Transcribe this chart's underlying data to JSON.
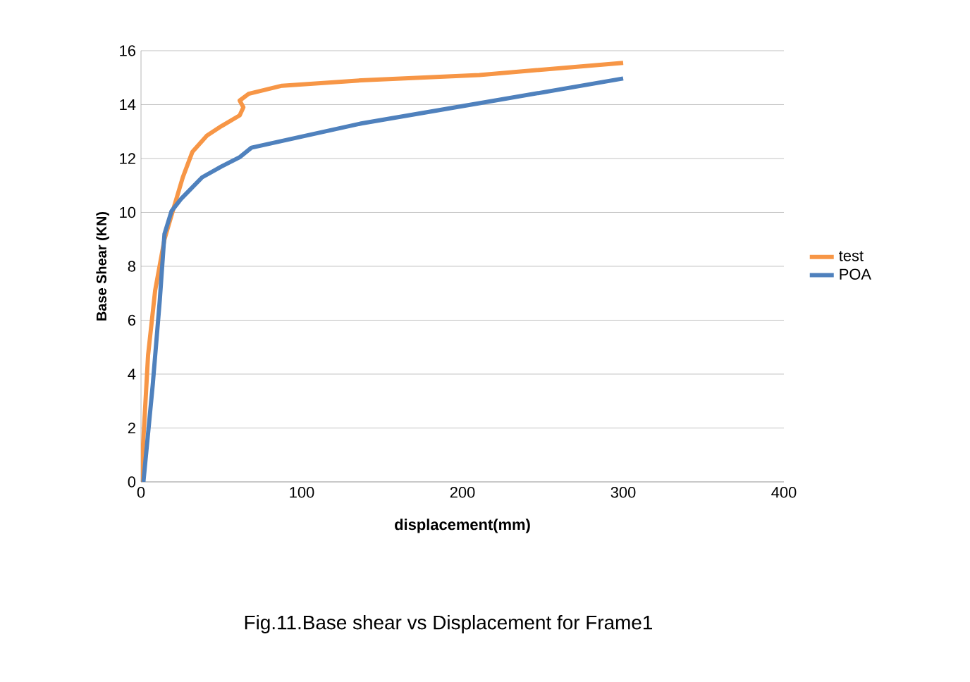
{
  "chart_data": {
    "type": "line",
    "xlabel": "displacement(mm)",
    "ylabel": "Base Shear (KN)",
    "annotations": [
      "Fig.11.Base shear vs Displacement for Frame1"
    ],
    "xlim": [
      0,
      400
    ],
    "xticks": [
      0,
      100,
      200,
      300,
      400
    ],
    "ylim": [
      0,
      16
    ],
    "yticks": [
      0,
      2,
      4,
      6,
      8,
      10,
      12,
      14,
      16
    ],
    "grid": "y",
    "legend": "right",
    "marker": "none",
    "line_style": "solid",
    "series": [
      {
        "name": "test",
        "color": "#f79646",
        "x": [
          0,
          4.4,
          8.8,
          14.6,
          20.5,
          26,
          32,
          41,
          50,
          61.4,
          63.7,
          61.4,
          67,
          87.7,
          137,
          210.5,
          300
        ],
        "values": [
          0,
          4.7,
          7.1,
          9.0,
          10.2,
          11.3,
          12.25,
          12.85,
          13.2,
          13.6,
          13.9,
          14.15,
          14.4,
          14.7,
          14.9,
          15.1,
          15.55
        ]
      },
      {
        "name": "POA",
        "color": "#4f81bd",
        "x": [
          1.5,
          7.3,
          11.7,
          14.6,
          19,
          24.9,
          38,
          50,
          61.4,
          68.7,
          137,
          210.5,
          300
        ],
        "values": [
          0,
          3.6,
          6.75,
          9.2,
          10.05,
          10.5,
          11.3,
          11.7,
          12.05,
          12.4,
          13.3,
          14.05,
          14.97
        ]
      }
    ]
  }
}
